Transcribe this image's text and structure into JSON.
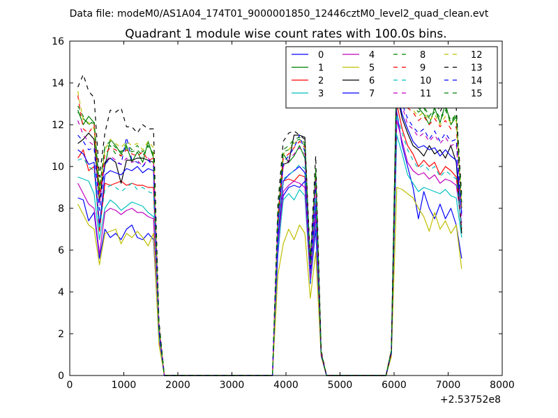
{
  "suptitle": "Data file: modeM0/AS1A04_174T01_9000001850_12446cztM0_level2_quad_clean.evt",
  "chart_data": {
    "type": "line",
    "title": "Quadrant 1 module wise count rates with 100.0s bins.",
    "xlabel": "",
    "ylabel": "",
    "x_offset_label": "+2.53752e8",
    "xlim": [
      0,
      8000
    ],
    "ylim": [
      0,
      16
    ],
    "xticks": [
      0,
      1000,
      2000,
      3000,
      4000,
      5000,
      6000,
      7000,
      8000
    ],
    "yticks": [
      0,
      2,
      4,
      6,
      8,
      10,
      12,
      14,
      16
    ],
    "grid": false,
    "legend_position": "top-right",
    "legend_columns": 4,
    "segments": [
      {
        "start": 150,
        "n": 17
      },
      {
        "start": 3750,
        "n": 11
      },
      {
        "start": 5850,
        "n": 15
      }
    ],
    "zero_line_ranges": [
      [
        1750,
        3750
      ],
      [
        4850,
        5850
      ]
    ],
    "series": [
      {
        "name": "0",
        "color": "#0000ff",
        "dash": "solid",
        "seg": [
          [
            8.5,
            8.4,
            7.4,
            7.8,
            5.6,
            7.0,
            6.6,
            6.8,
            6.5,
            7.0,
            7.2,
            6.6,
            6.5,
            6.8,
            6.5,
            1.8,
            0
          ],
          [
            0,
            5.8,
            8.6,
            9.0,
            9.1,
            9.0,
            9.3,
            4.4,
            7.0,
            1.0,
            0
          ],
          [
            0,
            1.0,
            12.6,
            11.0,
            10.0,
            9.0,
            7.5,
            8.8,
            8.0,
            7.5,
            8.2,
            7.5,
            8.0,
            7.2,
            5.6
          ]
        ]
      },
      {
        "name": "1",
        "color": "#008000",
        "dash": "solid",
        "seg": [
          [
            12.7,
            12.0,
            12.4,
            12.1,
            8.8,
            10.0,
            11.3,
            11.0,
            10.6,
            11.0,
            10.2,
            10.7,
            10.2,
            11.2,
            10.4,
            2.4,
            0
          ],
          [
            0,
            7.6,
            10.6,
            10.2,
            10.5,
            11.0,
            10.4,
            5.5,
            9.6,
            1.1,
            0
          ],
          [
            0,
            1.2,
            15.0,
            14.2,
            13.5,
            13.0,
            12.8,
            12.5,
            12.0,
            12.8,
            12.1,
            13.0,
            12.0,
            12.4,
            8.0
          ]
        ]
      },
      {
        "name": "2",
        "color": "#ff0000",
        "dash": "solid",
        "seg": [
          [
            10.4,
            10.8,
            9.8,
            10.0,
            6.9,
            9.2,
            9.1,
            9.2,
            9.3,
            9.1,
            9.2,
            9.1,
            9.1,
            9.0,
            9.0,
            2.0,
            0
          ],
          [
            0,
            6.6,
            9.3,
            9.4,
            9.3,
            9.6,
            9.5,
            4.8,
            8.0,
            1.0,
            0
          ],
          [
            0,
            1.1,
            13.0,
            11.8,
            11.0,
            10.6,
            10.0,
            10.3,
            10.0,
            10.2,
            9.6,
            10.0,
            9.8,
            9.5,
            7.0
          ]
        ]
      },
      {
        "name": "3",
        "color": "#00bfbf",
        "dash": "solid",
        "seg": [
          [
            9.5,
            9.4,
            9.3,
            8.7,
            6.5,
            8.0,
            8.4,
            8.2,
            7.9,
            8.1,
            8.3,
            8.2,
            8.1,
            7.8,
            7.6,
            1.7,
            0
          ],
          [
            0,
            6.0,
            8.4,
            8.7,
            8.4,
            8.9,
            8.6,
            4.5,
            7.4,
            1.0,
            0
          ],
          [
            0,
            1.0,
            11.5,
            10.6,
            9.6,
            9.2,
            8.8,
            9.0,
            8.9,
            8.8,
            8.7,
            8.9,
            8.6,
            8.5,
            6.6
          ]
        ]
      },
      {
        "name": "4",
        "color": "#bf00bf",
        "dash": "solid",
        "seg": [
          [
            9.2,
            8.7,
            8.2,
            8.0,
            5.8,
            7.8,
            8.0,
            7.9,
            7.7,
            7.9,
            8.0,
            7.8,
            7.8,
            7.6,
            7.5,
            1.7,
            0
          ],
          [
            0,
            6.3,
            8.8,
            9.1,
            9.3,
            9.2,
            9.0,
            4.6,
            7.7,
            1.0,
            0
          ],
          [
            0,
            1.0,
            12.2,
            11.2,
            10.2,
            9.8,
            9.6,
            9.7,
            9.4,
            9.6,
            9.2,
            9.4,
            9.3,
            9.1,
            7.3
          ]
        ]
      },
      {
        "name": "5",
        "color": "#bfbf00",
        "dash": "solid",
        "seg": [
          [
            8.2,
            7.7,
            7.2,
            7.0,
            5.3,
            6.8,
            6.9,
            7.0,
            6.3,
            6.8,
            6.6,
            6.9,
            6.6,
            6.2,
            6.8,
            1.5,
            0
          ],
          [
            0,
            4.8,
            6.3,
            7.0,
            6.5,
            7.2,
            6.8,
            3.7,
            5.9,
            0.9,
            0
          ],
          [
            0,
            0.9,
            9.0,
            8.9,
            8.7,
            8.5,
            8.0,
            7.6,
            6.9,
            7.8,
            7.0,
            7.4,
            6.8,
            7.2,
            5.1
          ]
        ]
      },
      {
        "name": "6",
        "color": "#000000",
        "dash": "solid",
        "seg": [
          [
            11.1,
            11.3,
            11.6,
            11.3,
            8.3,
            10.2,
            10.4,
            10.2,
            9.2,
            10.3,
            10.3,
            10.4,
            10.4,
            10.3,
            10.2,
            2.3,
            0
          ],
          [
            0,
            7.2,
            10.1,
            10.2,
            11.5,
            11.5,
            11.4,
            5.0,
            9.3,
            1.1,
            0
          ],
          [
            0,
            1.1,
            13.5,
            12.3,
            11.6,
            11.0,
            10.8,
            10.5,
            11.0,
            10.6,
            10.8,
            10.4,
            11.0,
            10.2,
            6.8
          ]
        ]
      },
      {
        "name": "7",
        "color": "#0000ff",
        "dash": "solid",
        "seg": [
          [
            10.8,
            10.6,
            10.1,
            10.2,
            7.2,
            9.6,
            9.8,
            9.7,
            9.6,
            9.9,
            9.8,
            10.0,
            9.7,
            9.9,
            9.8,
            2.1,
            0
          ],
          [
            0,
            6.6,
            9.3,
            9.6,
            9.8,
            10.0,
            9.7,
            4.9,
            8.3,
            1.0,
            0
          ],
          [
            0,
            1.1,
            13.6,
            12.5,
            11.8,
            11.2,
            10.9,
            11.0,
            10.8,
            10.9,
            10.5,
            10.8,
            10.5,
            10.3,
            7.8
          ]
        ]
      },
      {
        "name": "8",
        "color": "#008000",
        "dash": "dashed",
        "seg": [
          [
            12.6,
            12.3,
            12.0,
            12.2,
            9.0,
            10.9,
            11.0,
            10.6,
            10.5,
            10.9,
            10.7,
            10.8,
            10.5,
            11.0,
            10.6,
            2.5,
            0
          ],
          [
            0,
            7.9,
            10.7,
            10.8,
            11.2,
            11.3,
            11.0,
            5.3,
            9.8,
            1.1,
            0
          ],
          [
            0,
            1.2,
            15.3,
            13.8,
            13.2,
            12.9,
            12.6,
            12.8,
            12.3,
            12.6,
            12.2,
            12.7,
            12.1,
            12.5,
            8.2
          ]
        ]
      },
      {
        "name": "9",
        "color": "#ff0000",
        "dash": "dashed",
        "seg": [
          [
            13.4,
            11.8,
            11.6,
            12.0,
            8.6,
            10.6,
            10.9,
            10.8,
            10.5,
            10.8,
            10.6,
            10.5,
            10.7,
            10.3,
            10.4,
            2.3,
            0
          ],
          [
            0,
            7.5,
            10.4,
            10.6,
            10.9,
            11.2,
            10.9,
            5.1,
            9.5,
            1.1,
            0
          ],
          [
            0,
            1.2,
            14.2,
            13.5,
            12.8,
            12.6,
            12.2,
            12.4,
            12.0,
            12.3,
            11.9,
            12.2,
            11.8,
            11.9,
            8.0
          ]
        ]
      },
      {
        "name": "10",
        "color": "#00bfbf",
        "dash": "dashed",
        "seg": [
          [
            10.3,
            10.4,
            10.0,
            9.8,
            7.0,
            8.9,
            9.1,
            9.0,
            8.8,
            9.0,
            9.2,
            8.9,
            9.0,
            8.8,
            8.7,
            1.9,
            0
          ],
          [
            0,
            6.9,
            9.4,
            9.6,
            9.8,
            10.1,
            9.9,
            4.9,
            8.5,
            1.0,
            0
          ],
          [
            0,
            1.1,
            12.5,
            11.6,
            10.8,
            10.3,
            9.9,
            10.1,
            9.8,
            10.0,
            9.5,
            9.8,
            9.6,
            9.4,
            7.1
          ]
        ]
      },
      {
        "name": "11",
        "color": "#bf00bf",
        "dash": "dashed",
        "seg": [
          [
            12.2,
            11.5,
            11.2,
            11.0,
            8.2,
            10.2,
            10.5,
            10.3,
            10.1,
            10.4,
            10.2,
            10.3,
            10.0,
            10.4,
            10.1,
            2.2,
            0
          ],
          [
            0,
            7.3,
            10.0,
            10.3,
            10.6,
            10.9,
            10.6,
            5.0,
            9.2,
            1.0,
            0
          ],
          [
            0,
            1.1,
            13.7,
            12.9,
            12.0,
            11.8,
            11.4,
            11.6,
            11.2,
            11.5,
            11.1,
            11.4,
            11.0,
            11.1,
            7.6
          ]
        ]
      },
      {
        "name": "12",
        "color": "#bfbf00",
        "dash": "dashed",
        "seg": [
          [
            13.6,
            12.2,
            12.1,
            11.8,
            8.6,
            10.8,
            11.3,
            11.1,
            10.9,
            11.2,
            11.0,
            11.1,
            10.8,
            11.2,
            10.9,
            2.4,
            0
          ],
          [
            0,
            7.7,
            10.6,
            10.8,
            11.1,
            11.3,
            11.0,
            5.2,
            9.7,
            1.1,
            0
          ],
          [
            0,
            1.2,
            14.6,
            13.9,
            13.0,
            12.7,
            12.4,
            12.6,
            12.2,
            12.5,
            12.0,
            12.4,
            12.1,
            12.2,
            8.1
          ]
        ]
      },
      {
        "name": "13",
        "color": "#000000",
        "dash": "dashed",
        "seg": [
          [
            13.8,
            14.4,
            13.6,
            13.3,
            9.5,
            11.6,
            12.7,
            12.6,
            12.8,
            11.9,
            11.9,
            11.6,
            12.0,
            11.8,
            11.8,
            2.6,
            0
          ],
          [
            0,
            8.2,
            11.2,
            11.6,
            11.7,
            11.5,
            11.3,
            5.5,
            10.5,
            1.2,
            0
          ],
          [
            0,
            1.2,
            14.8,
            14.2,
            13.6,
            13.8,
            13.2,
            13.5,
            12.8,
            13.3,
            12.6,
            13.2,
            13.0,
            12.8,
            8.6
          ]
        ]
      },
      {
        "name": "14",
        "color": "#0000ff",
        "dash": "dashed",
        "seg": [
          [
            11.5,
            11.2,
            10.8,
            10.9,
            7.9,
            10.1,
            10.4,
            10.2,
            10.1,
            11.4,
            10.3,
            10.2,
            10.0,
            10.3,
            10.0,
            2.2,
            0
          ],
          [
            0,
            7.4,
            10.2,
            10.5,
            10.9,
            11.5,
            10.7,
            5.0,
            9.4,
            1.0,
            0
          ],
          [
            0,
            1.1,
            13.9,
            13.0,
            12.3,
            11.9,
            11.6,
            11.8,
            11.3,
            11.7,
            11.2,
            11.6,
            11.2,
            11.3,
            7.7
          ]
        ]
      },
      {
        "name": "15",
        "color": "#008000",
        "dash": "dashed",
        "seg": [
          [
            12.9,
            12.4,
            12.0,
            12.1,
            8.9,
            11.0,
            11.2,
            10.9,
            10.7,
            11.1,
            10.8,
            11.0,
            10.7,
            11.0,
            10.5,
            2.4,
            0
          ],
          [
            0,
            7.8,
            10.8,
            11.0,
            11.3,
            11.4,
            11.1,
            5.3,
            9.9,
            1.1,
            0
          ],
          [
            0,
            1.2,
            14.9,
            14.0,
            13.3,
            13.0,
            12.7,
            12.9,
            12.4,
            12.8,
            12.3,
            12.8,
            12.2,
            12.5,
            8.3
          ]
        ]
      }
    ]
  }
}
